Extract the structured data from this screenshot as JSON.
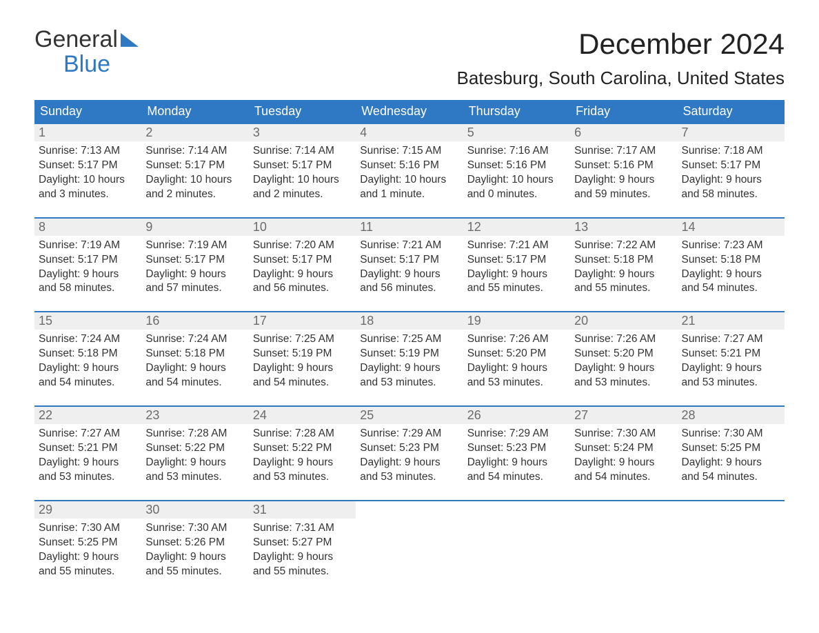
{
  "logo": {
    "line1": "General",
    "line2": "Blue"
  },
  "title": "December 2024",
  "location": "Batesburg, South Carolina, United States",
  "colors": {
    "header_bg": "#2f78c4",
    "header_text": "#ffffff",
    "daynum_bg": "#efefef",
    "daynum_text": "#6b6b6b",
    "border_top": "#2f78c4",
    "body_text": "#333333",
    "background": "#ffffff"
  },
  "typography": {
    "title_fontsize": 42,
    "location_fontsize": 26,
    "header_fontsize": 18,
    "daynum_fontsize": 18,
    "detail_fontsize": 15.5
  },
  "weekdays": [
    "Sunday",
    "Monday",
    "Tuesday",
    "Wednesday",
    "Thursday",
    "Friday",
    "Saturday"
  ],
  "weeks": [
    [
      {
        "day": "1",
        "sunrise": "Sunrise: 7:13 AM",
        "sunset": "Sunset: 5:17 PM",
        "daylight1": "Daylight: 10 hours",
        "daylight2": "and 3 minutes."
      },
      {
        "day": "2",
        "sunrise": "Sunrise: 7:14 AM",
        "sunset": "Sunset: 5:17 PM",
        "daylight1": "Daylight: 10 hours",
        "daylight2": "and 2 minutes."
      },
      {
        "day": "3",
        "sunrise": "Sunrise: 7:14 AM",
        "sunset": "Sunset: 5:17 PM",
        "daylight1": "Daylight: 10 hours",
        "daylight2": "and 2 minutes."
      },
      {
        "day": "4",
        "sunrise": "Sunrise: 7:15 AM",
        "sunset": "Sunset: 5:16 PM",
        "daylight1": "Daylight: 10 hours",
        "daylight2": "and 1 minute."
      },
      {
        "day": "5",
        "sunrise": "Sunrise: 7:16 AM",
        "sunset": "Sunset: 5:16 PM",
        "daylight1": "Daylight: 10 hours",
        "daylight2": "and 0 minutes."
      },
      {
        "day": "6",
        "sunrise": "Sunrise: 7:17 AM",
        "sunset": "Sunset: 5:16 PM",
        "daylight1": "Daylight: 9 hours",
        "daylight2": "and 59 minutes."
      },
      {
        "day": "7",
        "sunrise": "Sunrise: 7:18 AM",
        "sunset": "Sunset: 5:17 PM",
        "daylight1": "Daylight: 9 hours",
        "daylight2": "and 58 minutes."
      }
    ],
    [
      {
        "day": "8",
        "sunrise": "Sunrise: 7:19 AM",
        "sunset": "Sunset: 5:17 PM",
        "daylight1": "Daylight: 9 hours",
        "daylight2": "and 58 minutes."
      },
      {
        "day": "9",
        "sunrise": "Sunrise: 7:19 AM",
        "sunset": "Sunset: 5:17 PM",
        "daylight1": "Daylight: 9 hours",
        "daylight2": "and 57 minutes."
      },
      {
        "day": "10",
        "sunrise": "Sunrise: 7:20 AM",
        "sunset": "Sunset: 5:17 PM",
        "daylight1": "Daylight: 9 hours",
        "daylight2": "and 56 minutes."
      },
      {
        "day": "11",
        "sunrise": "Sunrise: 7:21 AM",
        "sunset": "Sunset: 5:17 PM",
        "daylight1": "Daylight: 9 hours",
        "daylight2": "and 56 minutes."
      },
      {
        "day": "12",
        "sunrise": "Sunrise: 7:21 AM",
        "sunset": "Sunset: 5:17 PM",
        "daylight1": "Daylight: 9 hours",
        "daylight2": "and 55 minutes."
      },
      {
        "day": "13",
        "sunrise": "Sunrise: 7:22 AM",
        "sunset": "Sunset: 5:18 PM",
        "daylight1": "Daylight: 9 hours",
        "daylight2": "and 55 minutes."
      },
      {
        "day": "14",
        "sunrise": "Sunrise: 7:23 AM",
        "sunset": "Sunset: 5:18 PM",
        "daylight1": "Daylight: 9 hours",
        "daylight2": "and 54 minutes."
      }
    ],
    [
      {
        "day": "15",
        "sunrise": "Sunrise: 7:24 AM",
        "sunset": "Sunset: 5:18 PM",
        "daylight1": "Daylight: 9 hours",
        "daylight2": "and 54 minutes."
      },
      {
        "day": "16",
        "sunrise": "Sunrise: 7:24 AM",
        "sunset": "Sunset: 5:18 PM",
        "daylight1": "Daylight: 9 hours",
        "daylight2": "and 54 minutes."
      },
      {
        "day": "17",
        "sunrise": "Sunrise: 7:25 AM",
        "sunset": "Sunset: 5:19 PM",
        "daylight1": "Daylight: 9 hours",
        "daylight2": "and 54 minutes."
      },
      {
        "day": "18",
        "sunrise": "Sunrise: 7:25 AM",
        "sunset": "Sunset: 5:19 PM",
        "daylight1": "Daylight: 9 hours",
        "daylight2": "and 53 minutes."
      },
      {
        "day": "19",
        "sunrise": "Sunrise: 7:26 AM",
        "sunset": "Sunset: 5:20 PM",
        "daylight1": "Daylight: 9 hours",
        "daylight2": "and 53 minutes."
      },
      {
        "day": "20",
        "sunrise": "Sunrise: 7:26 AM",
        "sunset": "Sunset: 5:20 PM",
        "daylight1": "Daylight: 9 hours",
        "daylight2": "and 53 minutes."
      },
      {
        "day": "21",
        "sunrise": "Sunrise: 7:27 AM",
        "sunset": "Sunset: 5:21 PM",
        "daylight1": "Daylight: 9 hours",
        "daylight2": "and 53 minutes."
      }
    ],
    [
      {
        "day": "22",
        "sunrise": "Sunrise: 7:27 AM",
        "sunset": "Sunset: 5:21 PM",
        "daylight1": "Daylight: 9 hours",
        "daylight2": "and 53 minutes."
      },
      {
        "day": "23",
        "sunrise": "Sunrise: 7:28 AM",
        "sunset": "Sunset: 5:22 PM",
        "daylight1": "Daylight: 9 hours",
        "daylight2": "and 53 minutes."
      },
      {
        "day": "24",
        "sunrise": "Sunrise: 7:28 AM",
        "sunset": "Sunset: 5:22 PM",
        "daylight1": "Daylight: 9 hours",
        "daylight2": "and 53 minutes."
      },
      {
        "day": "25",
        "sunrise": "Sunrise: 7:29 AM",
        "sunset": "Sunset: 5:23 PM",
        "daylight1": "Daylight: 9 hours",
        "daylight2": "and 53 minutes."
      },
      {
        "day": "26",
        "sunrise": "Sunrise: 7:29 AM",
        "sunset": "Sunset: 5:23 PM",
        "daylight1": "Daylight: 9 hours",
        "daylight2": "and 54 minutes."
      },
      {
        "day": "27",
        "sunrise": "Sunrise: 7:30 AM",
        "sunset": "Sunset: 5:24 PM",
        "daylight1": "Daylight: 9 hours",
        "daylight2": "and 54 minutes."
      },
      {
        "day": "28",
        "sunrise": "Sunrise: 7:30 AM",
        "sunset": "Sunset: 5:25 PM",
        "daylight1": "Daylight: 9 hours",
        "daylight2": "and 54 minutes."
      }
    ],
    [
      {
        "day": "29",
        "sunrise": "Sunrise: 7:30 AM",
        "sunset": "Sunset: 5:25 PM",
        "daylight1": "Daylight: 9 hours",
        "daylight2": "and 55 minutes."
      },
      {
        "day": "30",
        "sunrise": "Sunrise: 7:30 AM",
        "sunset": "Sunset: 5:26 PM",
        "daylight1": "Daylight: 9 hours",
        "daylight2": "and 55 minutes."
      },
      {
        "day": "31",
        "sunrise": "Sunrise: 7:31 AM",
        "sunset": "Sunset: 5:27 PM",
        "daylight1": "Daylight: 9 hours",
        "daylight2": "and 55 minutes."
      },
      null,
      null,
      null,
      null
    ]
  ]
}
